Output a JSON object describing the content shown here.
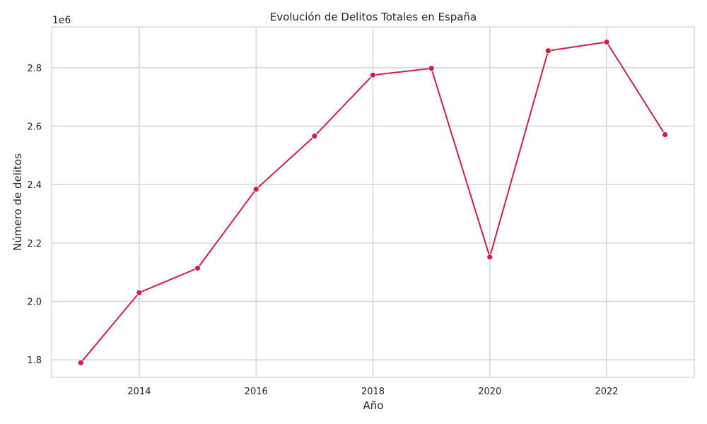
{
  "chart_data": {
    "type": "line",
    "title": "Evolución de Delitos Totales en España",
    "xlabel": "Año",
    "ylabel": "Número de delitos",
    "y_offset_label": "1e6",
    "xlim": [
      2012.5,
      2023.5
    ],
    "ylim": [
      1.74,
      2.94
    ],
    "x_ticks": [
      2014,
      2016,
      2018,
      2020,
      2022
    ],
    "y_ticks": [
      1.8,
      2.0,
      2.2,
      2.4,
      2.6,
      2.8
    ],
    "y_tick_labels": [
      "1.8",
      "2.0",
      "2.2",
      "2.4",
      "2.6",
      "2.8"
    ],
    "grid": true,
    "series": [
      {
        "color": "#d21e44",
        "x": [
          2013,
          2014,
          2015,
          2016,
          2017,
          2018,
          2019,
          2020,
          2021,
          2022,
          2023
        ],
        "values": [
          1.79,
          2.03,
          2.114,
          2.384,
          2.566,
          2.775,
          2.798,
          2.152,
          2.858,
          2.888,
          2.571
        ]
      }
    ]
  },
  "colors": {
    "background": "#ffffff",
    "grid": "#d0d0d0",
    "axis": "#c8c8c8",
    "text": "#262626"
  }
}
